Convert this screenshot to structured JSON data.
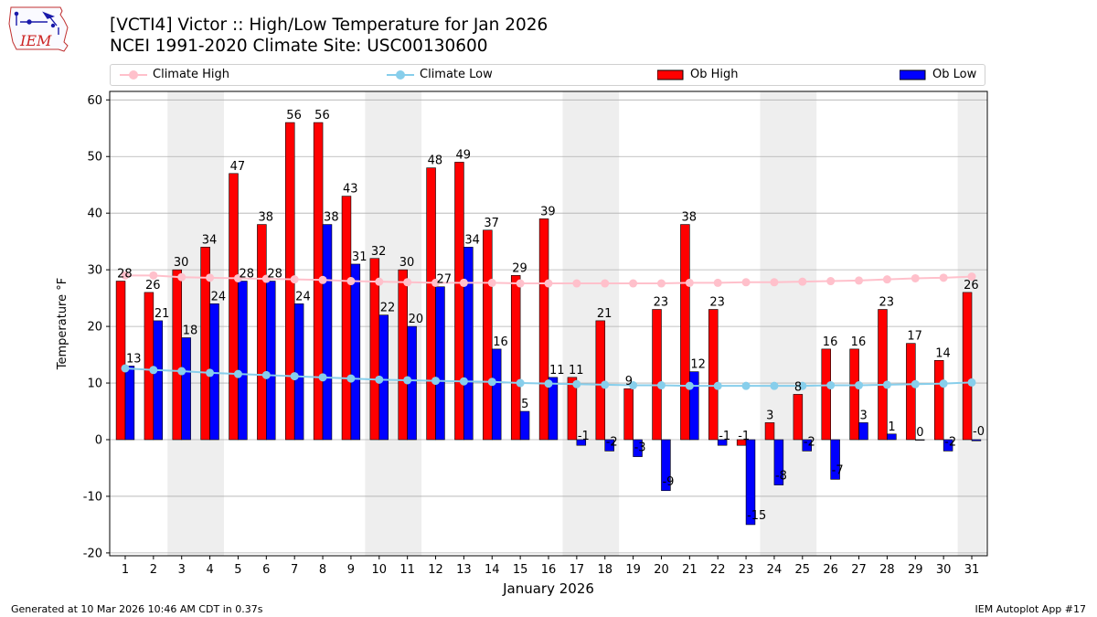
{
  "logo": {
    "text": "IEM"
  },
  "header": {
    "title": "[VCTI4] Victor :: High/Low Temperature for Jan 2026",
    "subtitle": "NCEI 1991-2020 Climate Site: USC00130600"
  },
  "footer": {
    "left": "Generated at 10 Mar 2026 10:46 AM CDT in 0.37s",
    "right": "IEM Autoplot App #17"
  },
  "chart_data": {
    "type": "bar",
    "xlabel": "January 2026",
    "ylabel": "Temperature °F",
    "ylim": [
      -20.5,
      61.5
    ],
    "yticks": [
      -20,
      -10,
      0,
      10,
      20,
      30,
      40,
      50,
      60
    ],
    "grid": true,
    "legend_position": "top",
    "days": [
      1,
      2,
      3,
      4,
      5,
      6,
      7,
      8,
      9,
      10,
      11,
      12,
      13,
      14,
      15,
      16,
      17,
      18,
      19,
      20,
      21,
      22,
      23,
      24,
      25,
      26,
      27,
      28,
      29,
      30,
      31
    ],
    "weekend_shading": [
      [
        3,
        4
      ],
      [
        10,
        11
      ],
      [
        17,
        18
      ],
      [
        24,
        25
      ],
      [
        31,
        31
      ]
    ],
    "series": [
      {
        "name": "Climate High",
        "kind": "line",
        "color": "#ffc0cb",
        "values": [
          29,
          29,
          28.7,
          28.6,
          28.5,
          28.4,
          28.3,
          28.2,
          28.0,
          27.9,
          27.8,
          27.7,
          27.7,
          27.7,
          27.6,
          27.6,
          27.6,
          27.6,
          27.6,
          27.6,
          27.7,
          27.7,
          27.8,
          27.8,
          27.9,
          28.0,
          28.1,
          28.3,
          28.5,
          28.6,
          28.8
        ]
      },
      {
        "name": "Climate Low",
        "kind": "line",
        "color": "#87ceeb",
        "values": [
          12.6,
          12.3,
          12.1,
          11.8,
          11.6,
          11.4,
          11.2,
          11.0,
          10.8,
          10.6,
          10.5,
          10.4,
          10.3,
          10.2,
          10.0,
          9.9,
          9.8,
          9.7,
          9.6,
          9.6,
          9.5,
          9.5,
          9.5,
          9.5,
          9.5,
          9.6,
          9.6,
          9.7,
          9.8,
          9.9,
          10.1
        ]
      },
      {
        "name": "Ob High",
        "kind": "bar",
        "color": "#ff0000",
        "values": [
          28,
          26,
          30,
          34,
          47,
          38,
          56,
          56,
          43,
          32,
          30,
          48,
          49,
          37,
          29,
          39,
          11,
          21,
          9,
          23,
          38,
          23,
          -1,
          3,
          8,
          16,
          16,
          23,
          17,
          14,
          26
        ],
        "labels": [
          "28",
          "26",
          "30",
          "34",
          "47",
          "38",
          "56",
          "56",
          "43",
          "32",
          "30",
          "48",
          "49",
          "37",
          "29",
          "39",
          "11",
          "21",
          "9",
          "23",
          "38",
          "23",
          "-1",
          "3",
          "8",
          "16",
          "16",
          "23",
          "17",
          "14",
          "26"
        ]
      },
      {
        "name": "Ob Low",
        "kind": "bar",
        "color": "#0000ff",
        "values": [
          13,
          21,
          18,
          24,
          28,
          28,
          24,
          38,
          31,
          22,
          20,
          27,
          34,
          16,
          5,
          11,
          -1,
          -2,
          -3,
          -9,
          12,
          -1,
          -15,
          -8,
          -2,
          -7,
          3,
          1,
          0,
          -2,
          -0.2
        ],
        "labels": [
          "13",
          "21",
          "18",
          "24",
          "28",
          "28",
          "24",
          "38",
          "31",
          "22",
          "20",
          "27",
          "34",
          "16",
          "5",
          "11",
          "-1",
          "-2",
          "-3",
          "-9",
          "12",
          "-1",
          "-15",
          "-8",
          "-2",
          "-7",
          "3",
          "1",
          "0",
          "-2",
          "-0"
        ]
      }
    ]
  }
}
